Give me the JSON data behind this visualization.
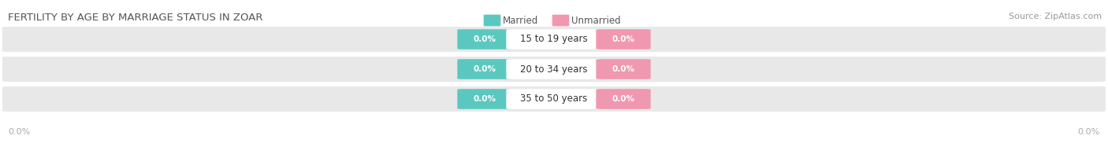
{
  "title": "FERTILITY BY AGE BY MARRIAGE STATUS IN ZOAR",
  "source": "Source: ZipAtlas.com",
  "categories": [
    "15 to 19 years",
    "20 to 34 years",
    "35 to 50 years"
  ],
  "married_values": [
    0.0,
    0.0,
    0.0
  ],
  "unmarried_values": [
    0.0,
    0.0,
    0.0
  ],
  "married_color": "#5bc8c0",
  "unmarried_color": "#f098b0",
  "row_bg_color": "#e8e8e8",
  "white_color": "#ffffff",
  "title_color": "#555555",
  "source_color": "#999999",
  "axis_label_color": "#aaaaaa",
  "legend_text_color": "#555555",
  "background_color": "#ffffff",
  "title_fontsize": 9.5,
  "source_fontsize": 8,
  "bar_label_fontsize": 8.5,
  "value_fontsize": 7.5,
  "legend_fontsize": 8.5,
  "axis_fontsize": 8,
  "figsize": [
    14.06,
    1.96
  ],
  "dpi": 100
}
